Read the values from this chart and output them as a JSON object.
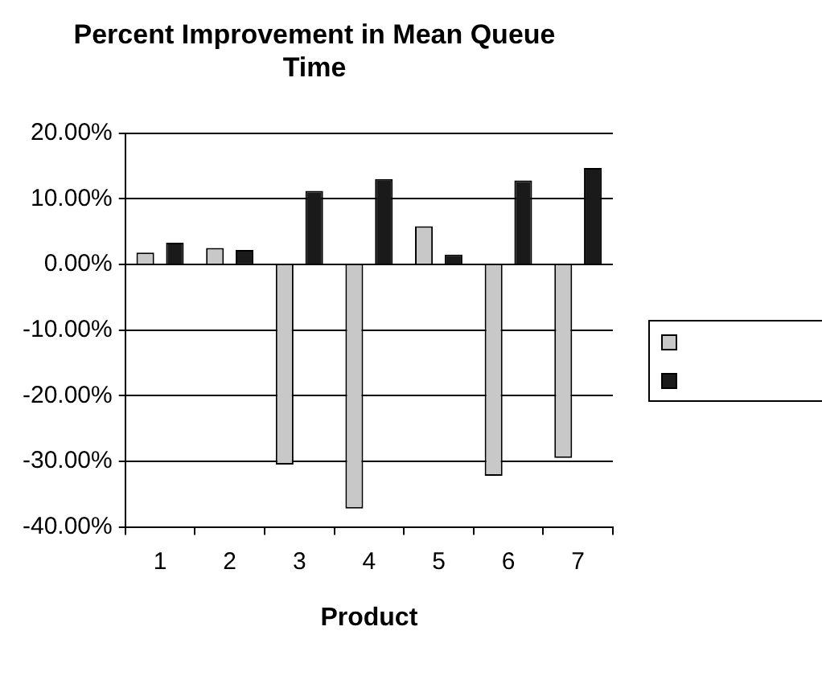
{
  "chart_data": {
    "type": "bar",
    "title": "Percent Improvement in Mean Queue Time",
    "xlabel": "Product",
    "categories": [
      "1",
      "2",
      "3",
      "4",
      "5",
      "6",
      "7"
    ],
    "series": [
      {
        "color": "#c8c8c8",
        "values": [
          1.8,
          2.5,
          -30.5,
          -37.2,
          5.8,
          -32.2,
          -29.5
        ]
      },
      {
        "color": "#1a1a1a",
        "values": [
          3.3,
          2.2,
          11.2,
          13,
          1.5,
          12.8,
          14.7
        ]
      }
    ],
    "ylim": [
      -40,
      20
    ],
    "yticks": [
      {
        "value": -40,
        "label": "-40.00%"
      },
      {
        "value": -30,
        "label": "-30.00%"
      },
      {
        "value": -20,
        "label": "-20.00%"
      },
      {
        "value": -10,
        "label": "-10.00%"
      },
      {
        "value": 0,
        "label": "0.00%"
      },
      {
        "value": 10,
        "label": "10.00%"
      },
      {
        "value": 20,
        "label": "20.00%"
      }
    ],
    "grid": "y"
  }
}
